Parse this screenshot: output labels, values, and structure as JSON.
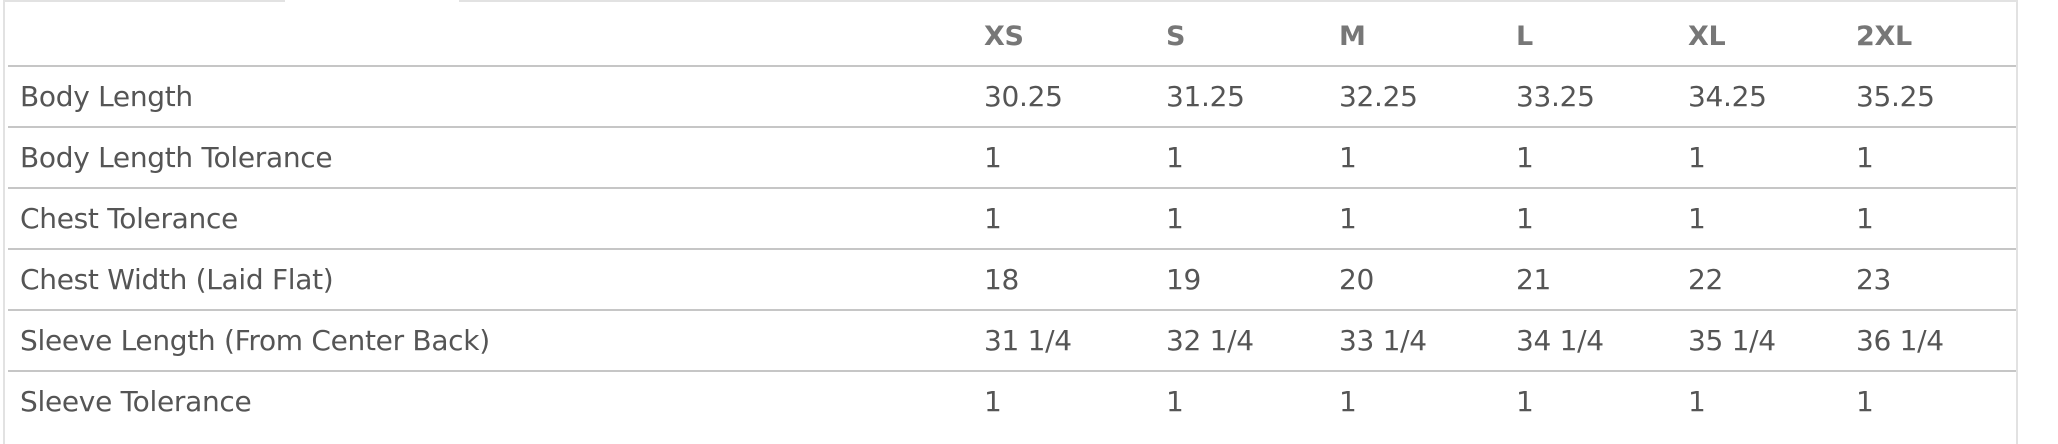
{
  "size_chart": {
    "columns": [
      "XS",
      "S",
      "M",
      "L",
      "XL",
      "2XL"
    ],
    "rows": [
      {
        "label": "Body Length",
        "values": [
          "30.25",
          "31.25",
          "32.25",
          "33.25",
          "34.25",
          "35.25"
        ]
      },
      {
        "label": "Body Length Tolerance",
        "values": [
          "1",
          "1",
          "1",
          "1",
          "1",
          "1"
        ]
      },
      {
        "label": "Chest Tolerance",
        "values": [
          "1",
          "1",
          "1",
          "1",
          "1",
          "1"
        ]
      },
      {
        "label": "Chest Width (Laid Flat)",
        "values": [
          "18",
          "19",
          "20",
          "21",
          "22",
          "23"
        ]
      },
      {
        "label": "Sleeve Length (From Center Back)",
        "values": [
          "31 1/4",
          "32 1/4",
          "33 1/4",
          "34 1/4",
          "35 1/4",
          "36 1/4"
        ]
      },
      {
        "label": "Sleeve Tolerance",
        "values": [
          "1",
          "1",
          "1",
          "1",
          "1",
          "1"
        ]
      }
    ]
  }
}
